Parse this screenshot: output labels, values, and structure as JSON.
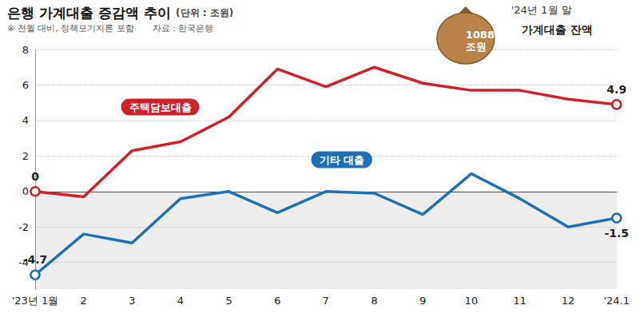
{
  "chart_data": {
    "type": "line",
    "title": "은행 가계대출 증감액 추이",
    "subtitle": "(단위 : 조원)",
    "note": "※ 전월 대비, 정책모기지론 포함",
    "source": "자료 : 한국은행",
    "annotation": {
      "date": "'24년 1월 말",
      "label": "가계대출 잔액",
      "value": "1088.4",
      "unit": "조원"
    },
    "categories": [
      "'23년 1월",
      "2",
      "3",
      "4",
      "5",
      "6",
      "7",
      "8",
      "9",
      "10",
      "11",
      "12",
      "'24.1"
    ],
    "series": [
      {
        "name": "주택담보대출",
        "color": "#d0202a",
        "marker": "circle",
        "values": [
          0,
          -0.3,
          2.3,
          2.8,
          4.2,
          6.9,
          5.9,
          7.0,
          6.1,
          5.7,
          5.7,
          5.2,
          4.9
        ],
        "value_labels": [
          "0",
          null,
          null,
          null,
          null,
          null,
          null,
          null,
          null,
          null,
          null,
          null,
          "4.9"
        ]
      },
      {
        "name": "기타 대출",
        "color": "#1f6fb5",
        "marker": "circle",
        "values": [
          -4.7,
          -2.4,
          -2.9,
          -0.4,
          0.0,
          -1.2,
          0.0,
          -0.1,
          -1.3,
          1.0,
          -0.4,
          -2.0,
          -1.5
        ],
        "value_labels": [
          "-4.7",
          null,
          null,
          null,
          null,
          null,
          null,
          null,
          null,
          null,
          null,
          null,
          "-1.5"
        ]
      }
    ],
    "ylim": [
      -5.5,
      8
    ],
    "yticks": [
      -4,
      -2,
      0,
      2,
      4,
      6,
      8
    ],
    "grid": true,
    "data_labels": true
  }
}
